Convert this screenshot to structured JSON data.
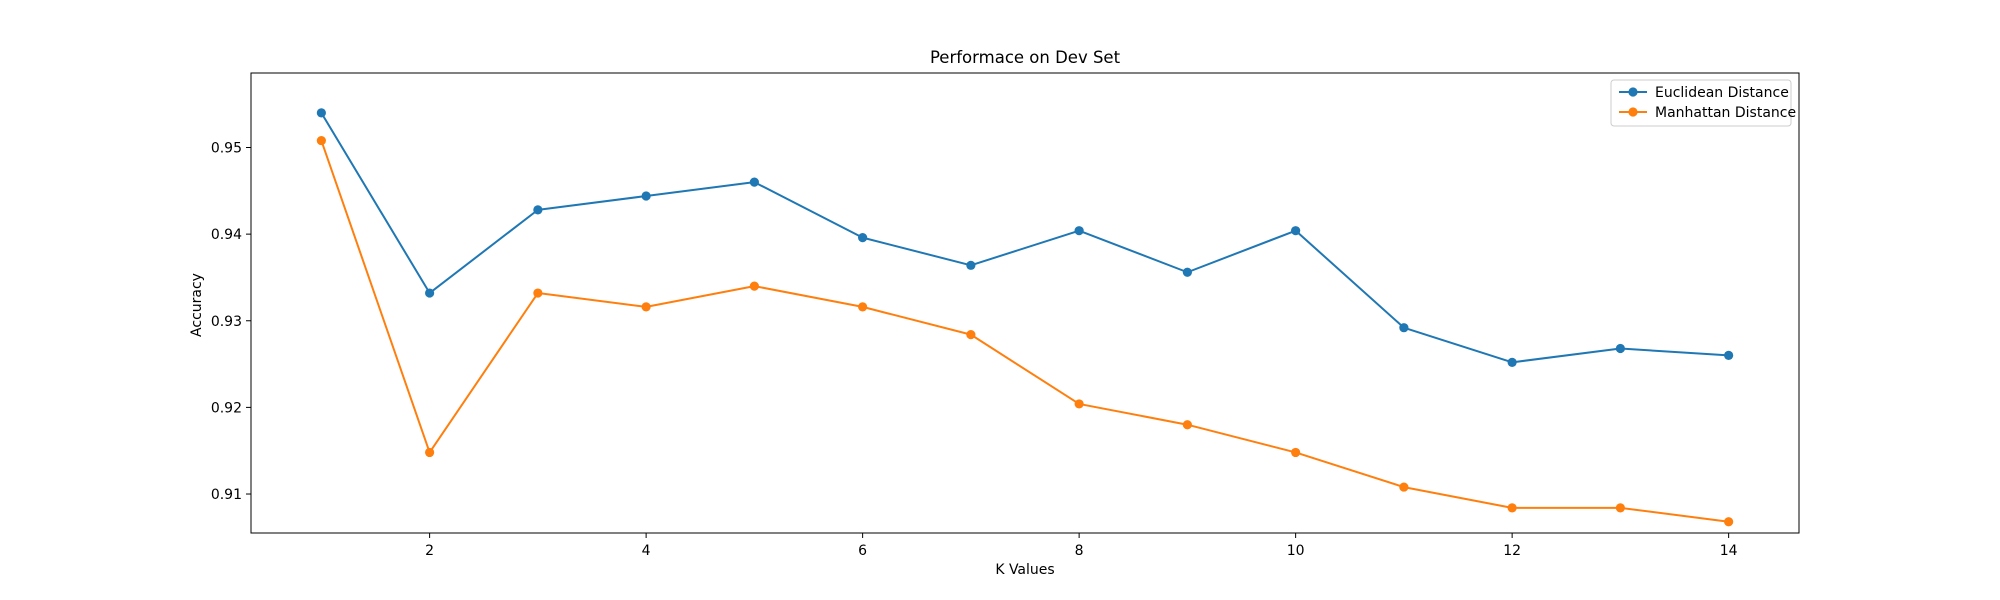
{
  "chart_data": {
    "type": "line",
    "title": "Performace on Dev Set",
    "xlabel": "K Values",
    "ylabel": "Accuracy",
    "xlim": [
      0.35,
      14.65
    ],
    "ylim": [
      0.9055,
      0.9586
    ],
    "xticks": [
      2,
      4,
      6,
      8,
      10,
      12,
      14
    ],
    "yticks": [
      0.91,
      0.92,
      0.93,
      0.94,
      0.95
    ],
    "xtick_labels": [
      "2",
      "4",
      "6",
      "8",
      "10",
      "12",
      "14"
    ],
    "ytick_labels": [
      "0.91",
      "0.92",
      "0.93",
      "0.94",
      "0.95"
    ],
    "grid": false,
    "legend_position": "top-right",
    "x": [
      1,
      2,
      3,
      4,
      5,
      6,
      7,
      8,
      9,
      10,
      11,
      12,
      13,
      14
    ],
    "series": [
      {
        "name": "Euclidean Distance",
        "color": "#1f77b4",
        "marker": "circle",
        "values": [
          0.954,
          0.9332,
          0.9428,
          0.9444,
          0.946,
          0.9396,
          0.9364,
          0.9404,
          0.9356,
          0.9404,
          0.9292,
          0.9252,
          0.9268,
          0.926
        ]
      },
      {
        "name": "Manhattan Distance",
        "color": "#ff7f0e",
        "marker": "circle",
        "values": [
          0.9508,
          0.9148,
          0.9332,
          0.9316,
          0.934,
          0.9316,
          0.9284,
          0.9204,
          0.918,
          0.9148,
          0.9108,
          0.9084,
          0.9084,
          0.9068
        ]
      }
    ]
  }
}
